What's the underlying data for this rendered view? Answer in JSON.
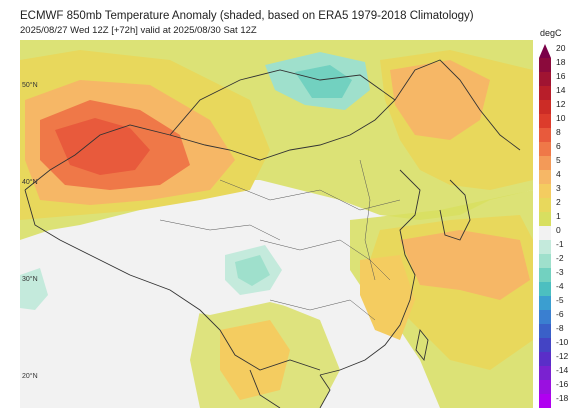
{
  "header": {
    "title": "ECMWF 850mb Temperature Anomaly (shaded, based on ERA5 1979-2018 Climatology)",
    "subtitle": "2025/08/27 Wed 12Z [+72h] valid at 2025/08/30 Sat 12Z"
  },
  "map": {
    "lat_labels": [
      "50°N",
      "40°N",
      "30°N",
      "20°N"
    ]
  },
  "colorbar": {
    "unit": "degC",
    "ticks": [
      "20",
      "18",
      "16",
      "14",
      "12",
      "10",
      "8",
      "6",
      "5",
      "4",
      "3",
      "2",
      "1",
      "0",
      "-1",
      "-2",
      "-3",
      "-4",
      "-5",
      "-6",
      "-8",
      "-10",
      "-12",
      "-14",
      "-16",
      "-18"
    ],
    "colors": [
      "#7a0048",
      "#8b0a3c",
      "#a01432",
      "#b81e2a",
      "#cc2c26",
      "#dc3c2c",
      "#e85a3c",
      "#ef7848",
      "#f39a58",
      "#f6b766",
      "#f4cc60",
      "#e8d85c",
      "#d8df60",
      "#f2f2f2",
      "#c4eadc",
      "#9fe0cc",
      "#72d1c0",
      "#4cbfc0",
      "#3b9ed0",
      "#3a7fd0",
      "#3a60c8",
      "#4444c4",
      "#5a2ec8",
      "#7a22d0",
      "#9a10e0",
      "#b000f0"
    ]
  }
}
